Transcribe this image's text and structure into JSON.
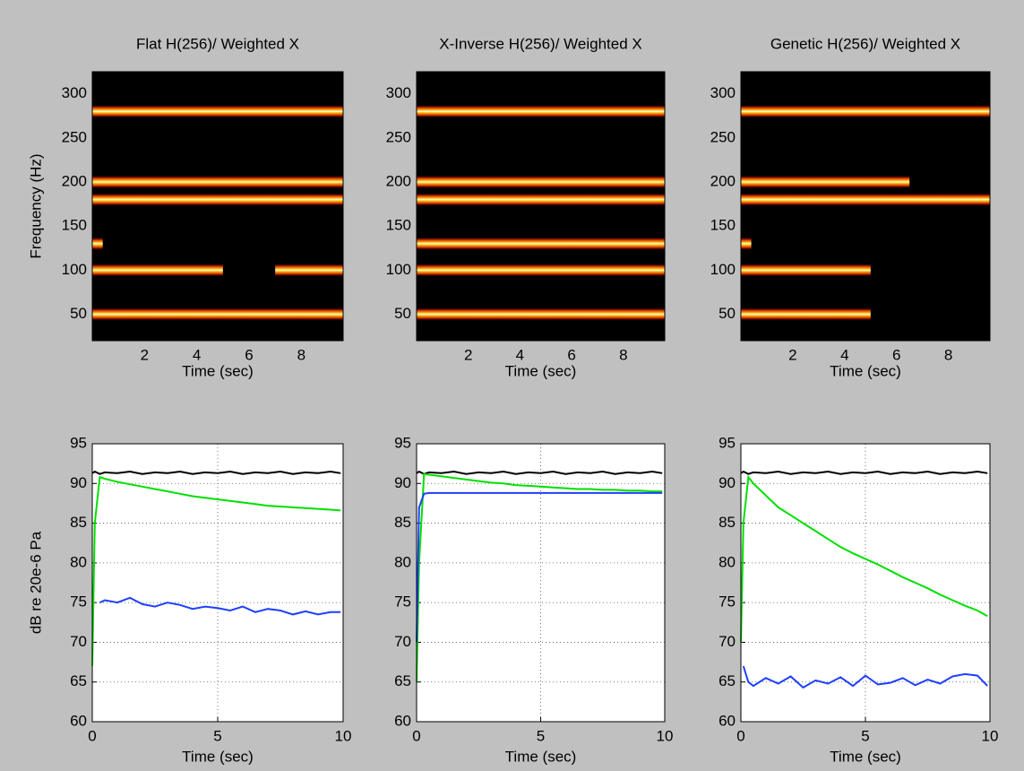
{
  "chart_data": [
    {
      "type": "spectrogram",
      "title": "Flat H(256)/ Weighted X",
      "xlabel": "Time (sec)",
      "ylabel": "Frequency (Hz)",
      "xlim": [
        0,
        9.6
      ],
      "xticks": [
        2,
        4,
        6,
        8
      ],
      "ylim": [
        20,
        325
      ],
      "yticks": [
        50,
        100,
        150,
        200,
        250,
        300
      ],
      "bands": [
        {
          "frequency": 50,
          "start": 0,
          "end": 9.6
        },
        {
          "frequency": 100,
          "start": 0,
          "end": 5
        },
        {
          "frequency": 100,
          "start": 7,
          "end": 9.6
        },
        {
          "frequency": 130,
          "start": 0,
          "end": 0.4
        },
        {
          "frequency": 180,
          "start": 0,
          "end": 9.6
        },
        {
          "frequency": 200,
          "start": 0,
          "end": 9.6
        },
        {
          "frequency": 280,
          "start": 0,
          "end": 9.6
        }
      ]
    },
    {
      "type": "spectrogram",
      "title": "X-Inverse H(256)/ Weighted X",
      "xlabel": "Time (sec)",
      "xlim": [
        0,
        9.6
      ],
      "xticks": [
        2,
        4,
        6,
        8
      ],
      "ylim": [
        20,
        325
      ],
      "yticks": [
        50,
        100,
        150,
        200,
        250,
        300
      ],
      "bands": [
        {
          "frequency": 50,
          "start": 0,
          "end": 9.6
        },
        {
          "frequency": 100,
          "start": 0,
          "end": 9.6
        },
        {
          "frequency": 130,
          "start": 0,
          "end": 9.6
        },
        {
          "frequency": 180,
          "start": 0,
          "end": 9.6
        },
        {
          "frequency": 200,
          "start": 0,
          "end": 9.6
        },
        {
          "frequency": 280,
          "start": 0,
          "end": 9.6
        }
      ]
    },
    {
      "type": "spectrogram",
      "title": "Genetic H(256)/ Weighted X",
      "xlabel": "Time (sec)",
      "xlim": [
        0,
        9.6
      ],
      "xticks": [
        2,
        4,
        6,
        8
      ],
      "ylim": [
        20,
        325
      ],
      "yticks": [
        50,
        100,
        150,
        200,
        250,
        300
      ],
      "bands": [
        {
          "frequency": 50,
          "start": 0,
          "end": 5
        },
        {
          "frequency": 100,
          "start": 0,
          "end": 5
        },
        {
          "frequency": 130,
          "start": 0,
          "end": 0.4
        },
        {
          "frequency": 180,
          "start": 0,
          "end": 9.6
        },
        {
          "frequency": 200,
          "start": 0,
          "end": 6.5
        },
        {
          "frequency": 280,
          "start": 0,
          "end": 9.6
        }
      ]
    },
    {
      "type": "line",
      "xlabel": "Time (sec)",
      "ylabel": "dB re 20e-6 Pa",
      "grid": true,
      "xlim": [
        0,
        10
      ],
      "xticks": [
        0,
        5,
        10
      ],
      "ylim": [
        60,
        95
      ],
      "yticks": [
        60,
        65,
        70,
        75,
        80,
        85,
        90,
        95
      ],
      "x": [
        0,
        0.1,
        0.3,
        0.5,
        1,
        1.5,
        2,
        2.5,
        3,
        3.5,
        4,
        4.5,
        5,
        5.5,
        6,
        6.5,
        7,
        7.5,
        8,
        8.5,
        9,
        9.5,
        9.9
      ],
      "series": [
        {
          "color": "#000000",
          "values": [
            91.3,
            91.5,
            91.2,
            91.4,
            91.3,
            91.5,
            91.2,
            91.4,
            91.3,
            91.5,
            91.2,
            91.4,
            91.3,
            91.5,
            91.2,
            91.4,
            91.3,
            91.5,
            91.2,
            91.4,
            91.3,
            91.5,
            91.3
          ]
        },
        {
          "color": "#00e000",
          "values": [
            67,
            85,
            90.8,
            90.6,
            90.2,
            89.9,
            89.6,
            89.3,
            89,
            88.7,
            88.4,
            88.2,
            88,
            87.8,
            87.6,
            87.4,
            87.2,
            87.1,
            87,
            86.9,
            86.8,
            86.7,
            86.6
          ]
        },
        {
          "color": "#1f3fff",
          "values": [
            null,
            null,
            75,
            75.3,
            75,
            75.6,
            74.8,
            74.5,
            75,
            74.7,
            74.2,
            74.5,
            74.3,
            74,
            74.5,
            73.8,
            74.2,
            74,
            73.5,
            73.9,
            73.5,
            73.8,
            73.8
          ]
        }
      ]
    },
    {
      "type": "line",
      "xlabel": "Time (sec)",
      "grid": true,
      "xlim": [
        0,
        10
      ],
      "xticks": [
        0,
        5,
        10
      ],
      "ylim": [
        60,
        95
      ],
      "yticks": [
        60,
        65,
        70,
        75,
        80,
        85,
        90,
        95
      ],
      "x": [
        0,
        0.1,
        0.3,
        0.5,
        1,
        1.5,
        2,
        2.5,
        3,
        3.5,
        4,
        4.5,
        5,
        5.5,
        6,
        6.5,
        7,
        7.5,
        8,
        8.5,
        9,
        9.5,
        9.9
      ],
      "series": [
        {
          "color": "#000000",
          "values": [
            91.3,
            91.5,
            91.2,
            91.4,
            91.3,
            91.5,
            91.2,
            91.4,
            91.3,
            91.5,
            91.2,
            91.4,
            91.3,
            91.5,
            91.2,
            91.4,
            91.3,
            91.5,
            91.2,
            91.4,
            91.3,
            91.5,
            91.3
          ]
        },
        {
          "color": "#00e000",
          "values": [
            65,
            80,
            91.2,
            91.1,
            90.9,
            90.7,
            90.5,
            90.3,
            90.1,
            90,
            89.8,
            89.7,
            89.6,
            89.5,
            89.4,
            89.3,
            89.3,
            89.2,
            89.2,
            89.1,
            89.1,
            89,
            89
          ]
        },
        {
          "color": "#1f3fff",
          "values": [
            70,
            87,
            88.7,
            88.8,
            88.8,
            88.8,
            88.8,
            88.8,
            88.8,
            88.8,
            88.8,
            88.8,
            88.8,
            88.8,
            88.8,
            88.8,
            88.8,
            88.8,
            88.8,
            88.8,
            88.8,
            88.8,
            88.8
          ]
        }
      ]
    },
    {
      "type": "line",
      "xlabel": "Time (sec)",
      "grid": true,
      "xlim": [
        0,
        10
      ],
      "xticks": [
        0,
        5,
        10
      ],
      "ylim": [
        60,
        95
      ],
      "yticks": [
        60,
        65,
        70,
        75,
        80,
        85,
        90,
        95
      ],
      "x": [
        0,
        0.1,
        0.3,
        0.5,
        1,
        1.5,
        2,
        2.5,
        3,
        3.5,
        4,
        4.5,
        5,
        5.5,
        6,
        6.5,
        7,
        7.5,
        8,
        8.5,
        9,
        9.5,
        9.9
      ],
      "series": [
        {
          "color": "#000000",
          "values": [
            91.3,
            91.5,
            91.2,
            91.4,
            91.3,
            91.5,
            91.2,
            91.4,
            91.3,
            91.5,
            91.2,
            91.4,
            91.3,
            91.5,
            91.2,
            91.4,
            91.3,
            91.5,
            91.2,
            91.4,
            91.3,
            91.5,
            91.3
          ]
        },
        {
          "color": "#00e000",
          "values": [
            70,
            85,
            90.8,
            90,
            88.5,
            87,
            86,
            85,
            84,
            83,
            82,
            81.2,
            80.5,
            79.8,
            79,
            78.2,
            77.5,
            76.8,
            76,
            75.3,
            74.6,
            74,
            73.3
          ]
        },
        {
          "color": "#1f3fff",
          "values": [
            null,
            67,
            65,
            64.5,
            65.5,
            64.8,
            65.7,
            64.3,
            65.2,
            64.8,
            65.6,
            64.5,
            65.8,
            64.7,
            64.9,
            65.5,
            64.6,
            65.3,
            64.8,
            65.7,
            66,
            65.8,
            64.5
          ]
        }
      ]
    }
  ]
}
